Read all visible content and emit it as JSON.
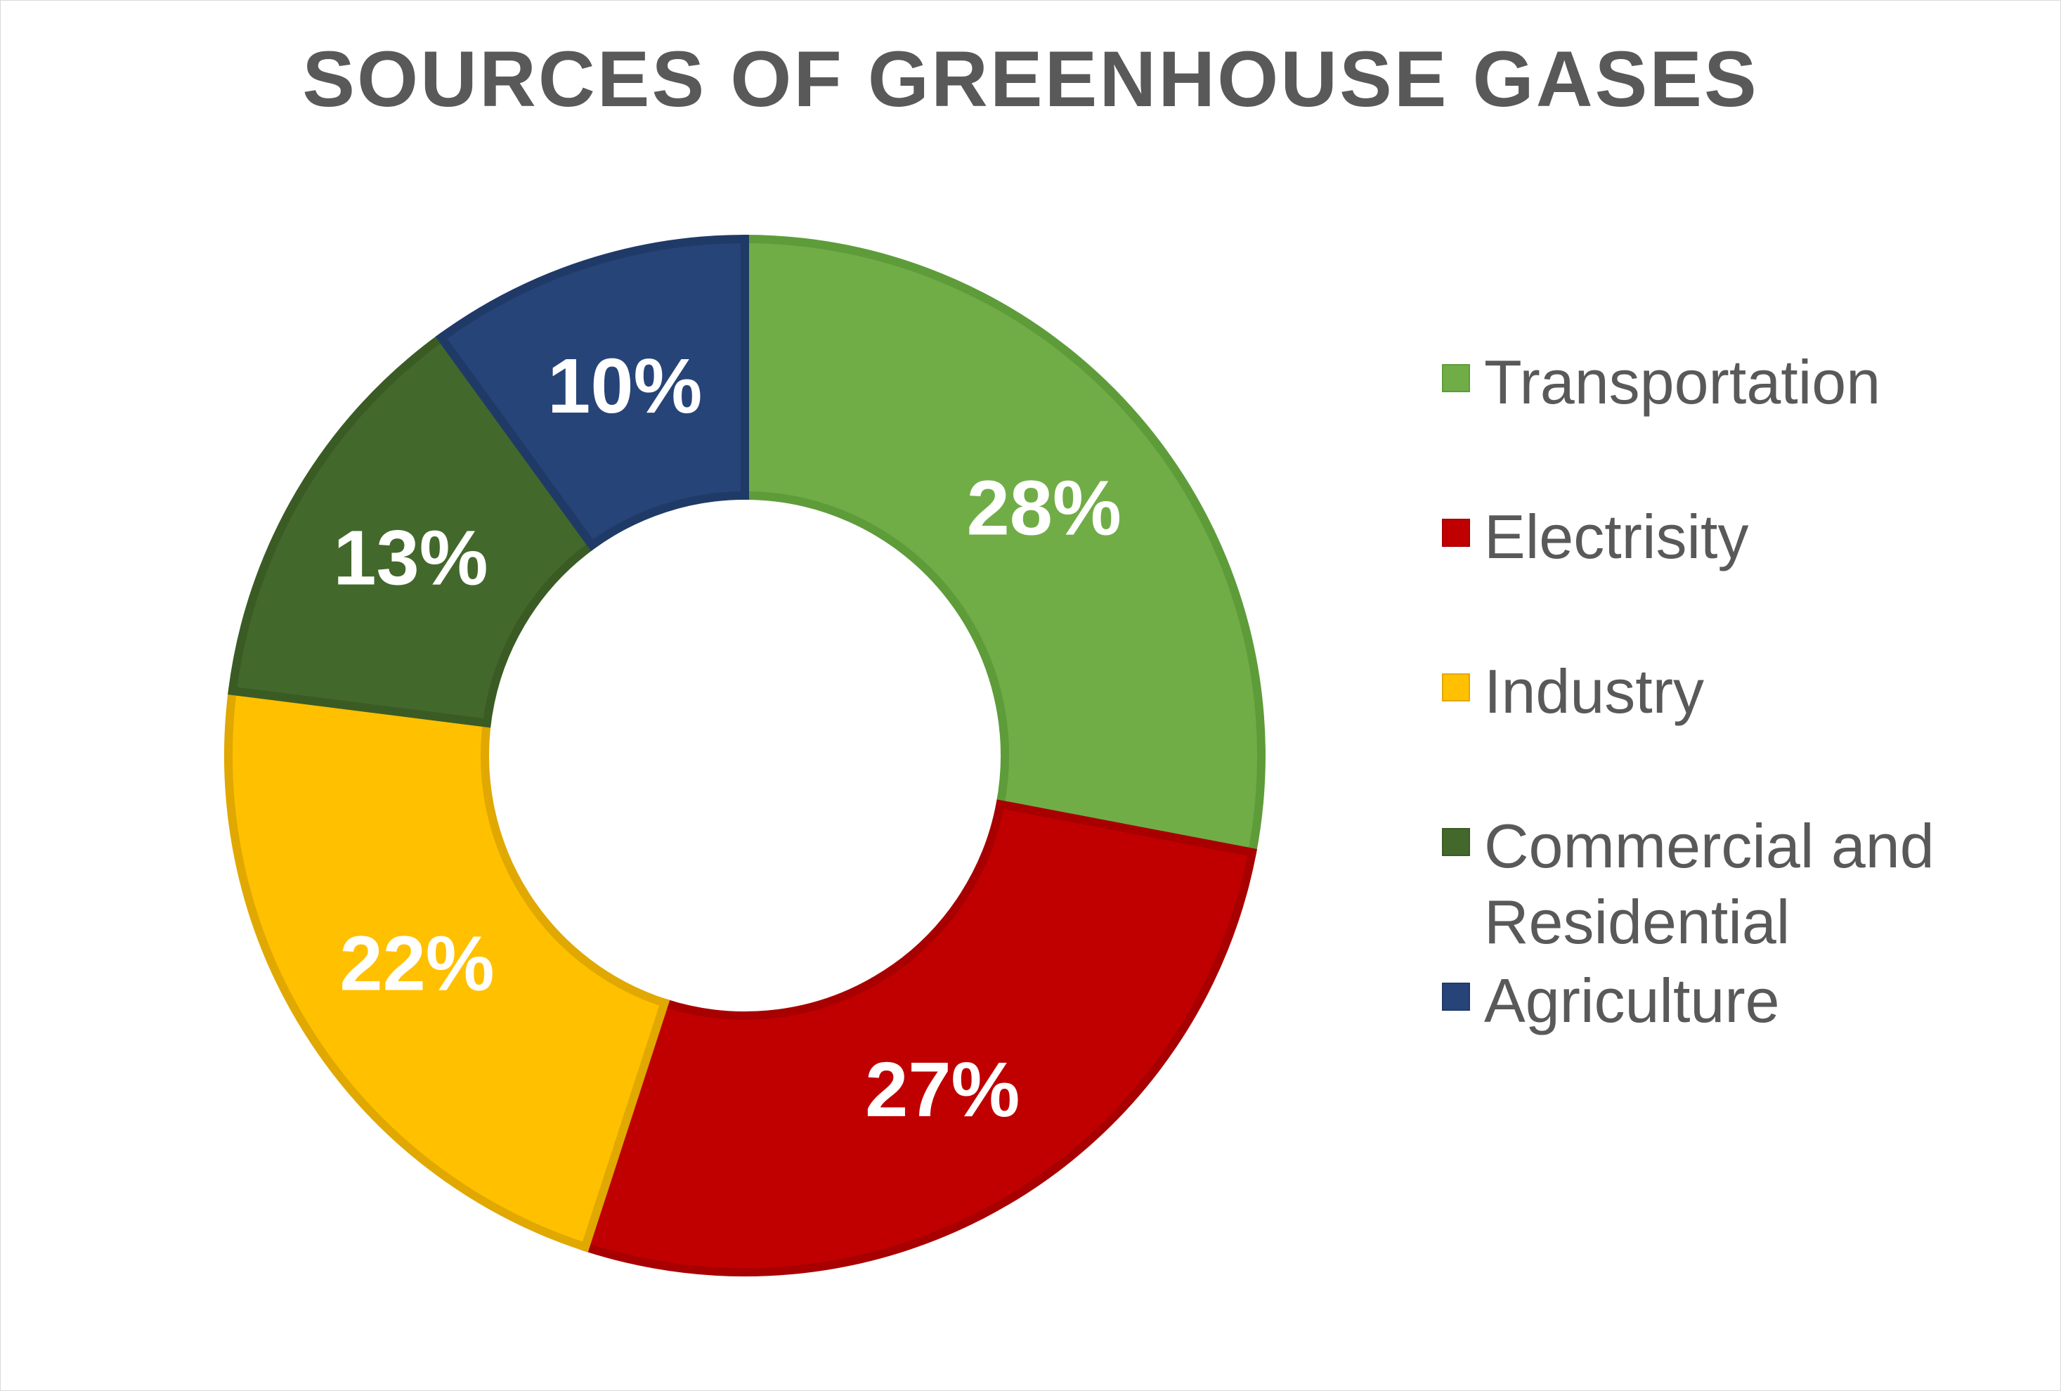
{
  "chart_data": {
    "type": "pie",
    "variant": "doughnut",
    "title": "SOURCES OF GREENHOUSE GASES",
    "categories": [
      "Transportation",
      "Electrisity",
      "Industry",
      "Commercial and Residential",
      "Agriculture"
    ],
    "values": [
      28,
      27,
      22,
      13,
      10
    ],
    "data_labels": [
      "28%",
      "27%",
      "22%",
      "13%",
      "10%"
    ],
    "colors": [
      "#70AD47",
      "#C00000",
      "#FFC000",
      "#43682B",
      "#264478"
    ],
    "border_colors": [
      "#5E9C3A",
      "#A80000",
      "#E0A800",
      "#3A5C24",
      "#203A68"
    ],
    "legend_position": "right",
    "start_angle_deg": 0,
    "direction": "clockwise"
  }
}
